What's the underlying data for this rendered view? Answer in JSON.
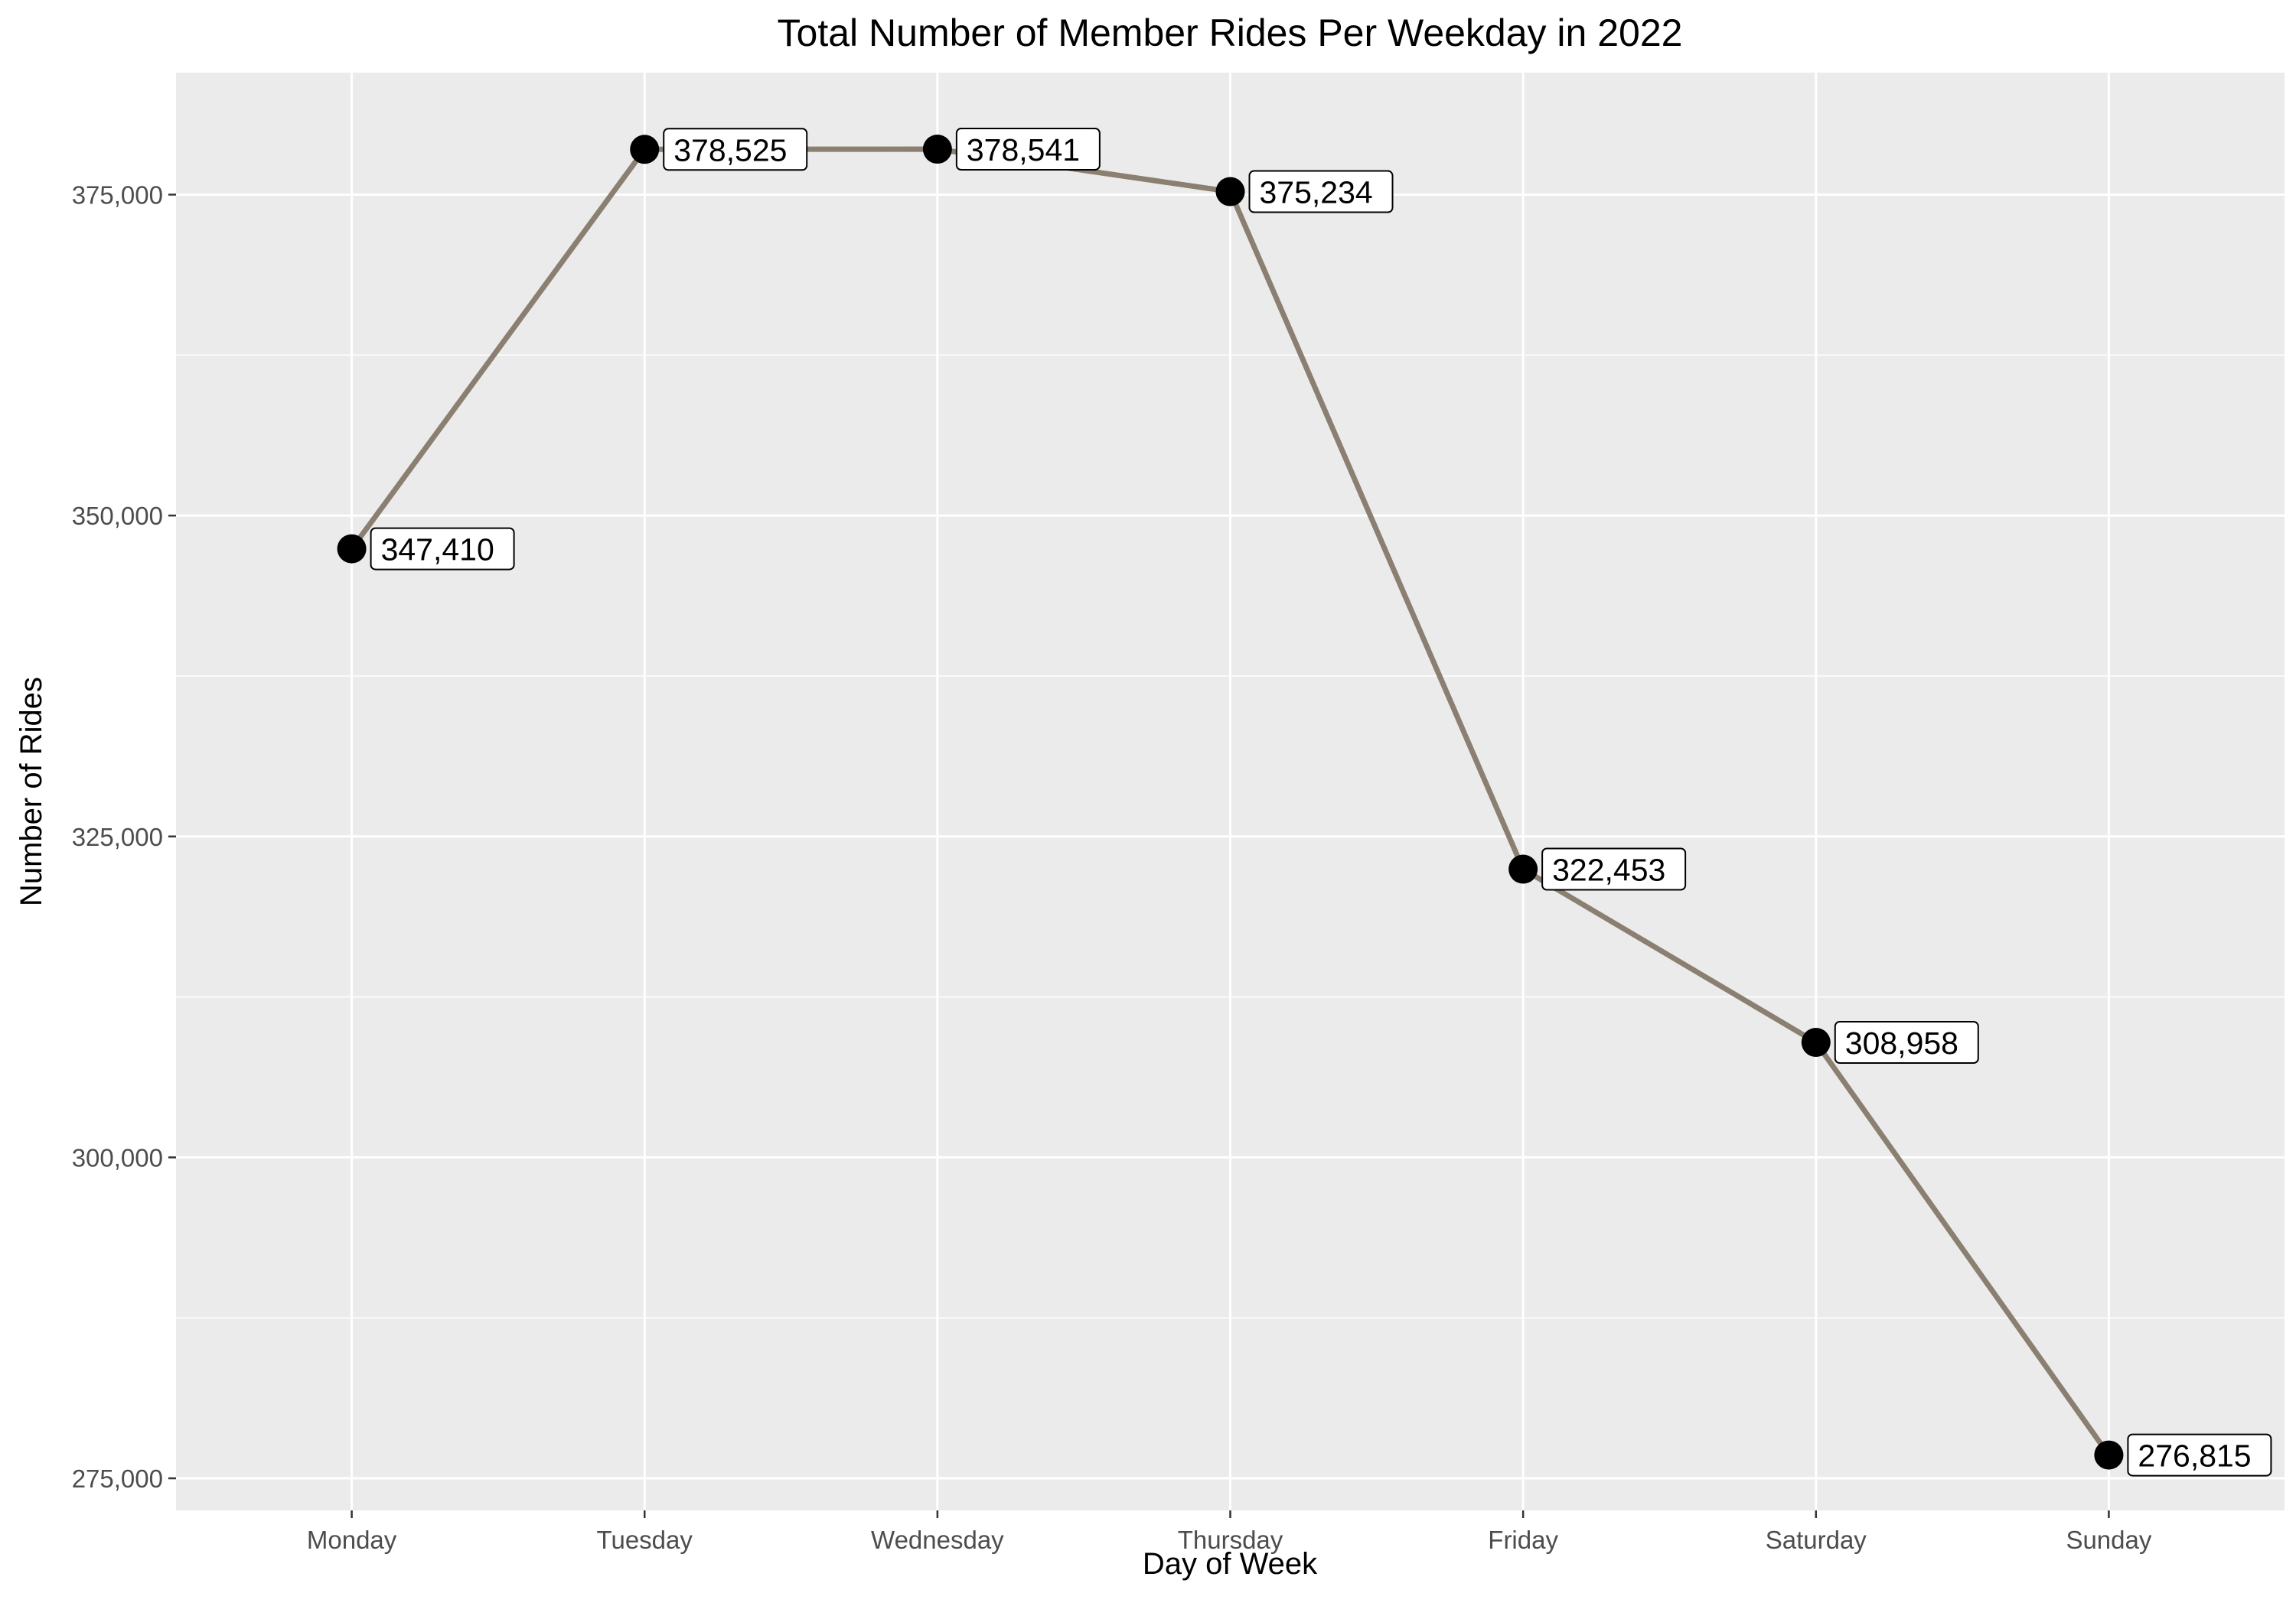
{
  "chart_data": {
    "type": "line",
    "title": "Total Number of Member Rides Per Weekday in 2022",
    "xlabel": "Day of Week",
    "ylabel": "Number of Rides",
    "categories": [
      "Monday",
      "Tuesday",
      "Wednesday",
      "Thursday",
      "Friday",
      "Saturday",
      "Sunday"
    ],
    "series": [
      {
        "values": [
          347410,
          378525,
          378541,
          375234,
          322453,
          308958,
          276815
        ],
        "value_labels": [
          "347,410",
          "378,525",
          "378,541",
          "375,234",
          "322,453",
          "308,958",
          "276,815"
        ]
      }
    ],
    "ylim": [
      272500,
      384500
    ],
    "y_ticks": [
      275000,
      300000,
      325000,
      350000,
      375000
    ],
    "y_tick_labels": [
      "275,000",
      "300,000",
      "325,000",
      "350,000",
      "375,000"
    ],
    "grid": true,
    "legend": "none",
    "colors": {
      "line": "#8a7f70",
      "point": "#000000",
      "panel": "#ebebeb",
      "grid": "#ffffff"
    }
  }
}
